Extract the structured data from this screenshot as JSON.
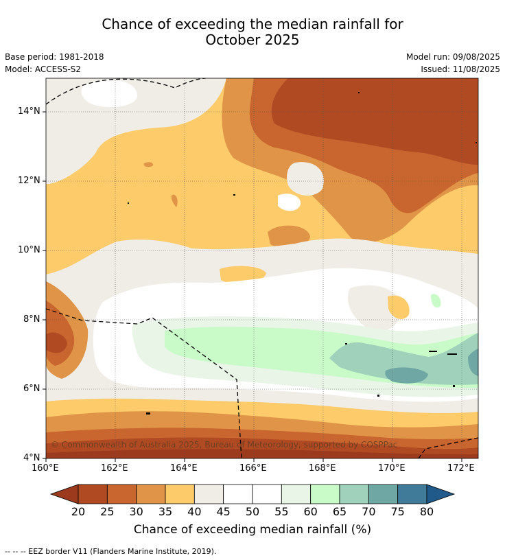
{
  "title_line1": "Chance of exceeding the median rainfall for",
  "title_line2": "October 2025",
  "base_period": "Base period: 1981-2018",
  "model": "Model: ACCESS-S2",
  "model_run": "Model run: 09/08/2025",
  "issued": "Issued: 11/08/2025",
  "lat_labels": [
    "14°N",
    "12°N",
    "10°N",
    "8°N",
    "6°N",
    "4°N"
  ],
  "lon_labels": [
    "160°E",
    "162°E",
    "164°E",
    "166°E",
    "168°E",
    "170°E",
    "172°E"
  ],
  "copyright": "© Commonwealth of Australia 2025, Bureau of Meteorology, supported by COSPPac",
  "colorbar": {
    "ticks": [
      "20",
      "25",
      "30",
      "35",
      "40",
      "45",
      "50",
      "55",
      "60",
      "65",
      "70",
      "75",
      "80"
    ],
    "label": "Chance of exceeding median rainfall (%)",
    "colors": [
      "#9c3a1e",
      "#b04a23",
      "#c9652f",
      "#e09447",
      "#fdcb6a",
      "#f0ece6",
      "#ffffff",
      "#ffffff",
      "#e8f5e7",
      "#c9fbc9",
      "#9fd1bb",
      "#6fa7a4",
      "#407c99",
      "#1f5a8a"
    ]
  },
  "footnote": "--  --  -- EEZ border V11 (Flanders Marine Institute, 2019)."
}
